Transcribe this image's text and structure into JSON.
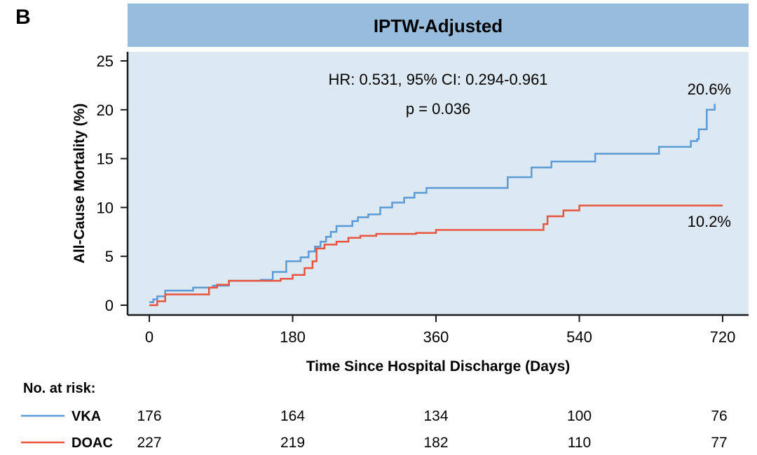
{
  "chart_data": {
    "type": "line",
    "panel_label": "B",
    "title": "IPTW-Adjusted",
    "xlabel": "Time Since Hospital Discharge (Days)",
    "ylabel": "All-Cause Mortality (%)",
    "xlim": [
      0,
      720
    ],
    "ylim": [
      0,
      25
    ],
    "xticks": [
      0,
      180,
      360,
      540,
      720
    ],
    "yticks": [
      0,
      5,
      10,
      15,
      20,
      25
    ],
    "annotations": {
      "hr": "HR: 0.531, 95% CI: 0.294-0.961",
      "p": "p = 0.036"
    },
    "series": [
      {
        "name": "VKA",
        "color": "#5b9bd5",
        "end_label": "20.6%",
        "x": [
          0,
          5,
          10,
          20,
          55,
          80,
          100,
          140,
          155,
          172,
          190,
          200,
          208,
          215,
          222,
          228,
          235,
          255,
          262,
          275,
          290,
          305,
          320,
          333,
          348,
          370,
          450,
          480,
          505,
          560,
          640,
          680,
          685,
          688,
          690,
          700,
          700,
          710
        ],
        "y": [
          0.3,
          0.6,
          0.9,
          1.5,
          1.8,
          2.0,
          2.5,
          2.6,
          3.4,
          4.5,
          4.9,
          5.5,
          6.0,
          6.5,
          7.0,
          7.5,
          8.1,
          8.6,
          9.0,
          9.3,
          10.0,
          10.5,
          11.0,
          11.5,
          12.0,
          12.0,
          13.1,
          14.1,
          14.7,
          15.5,
          16.2,
          16.8,
          16.8,
          17.0,
          18.0,
          19.5,
          20.0,
          20.6
        ]
      },
      {
        "name": "DOAC",
        "color": "#e8543d",
        "end_label": "10.2%",
        "x": [
          0,
          10,
          20,
          75,
          85,
          100,
          165,
          180,
          195,
          205,
          210,
          220,
          235,
          250,
          265,
          285,
          335,
          360,
          495,
          500,
          520,
          540,
          720
        ],
        "y": [
          0,
          0.4,
          1.1,
          1.8,
          2.1,
          2.5,
          2.7,
          3.1,
          3.8,
          4.5,
          5.8,
          6.2,
          6.5,
          6.9,
          7.1,
          7.3,
          7.4,
          7.7,
          8.3,
          9.1,
          9.7,
          10.2,
          10.2
        ]
      }
    ],
    "risk_table": {
      "title": "No. at risk:",
      "rows": [
        {
          "name": "VKA",
          "color": "#5b9bd5",
          "values": [
            "176",
            "164",
            "134",
            "100",
            "76"
          ]
        },
        {
          "name": "DOAC",
          "color": "#e8543d",
          "values": [
            "227",
            "219",
            "182",
            "110",
            "77"
          ]
        }
      ]
    },
    "colors": {
      "header_bg": "#98bcdc",
      "plot_bg": "#dce8f2"
    }
  }
}
